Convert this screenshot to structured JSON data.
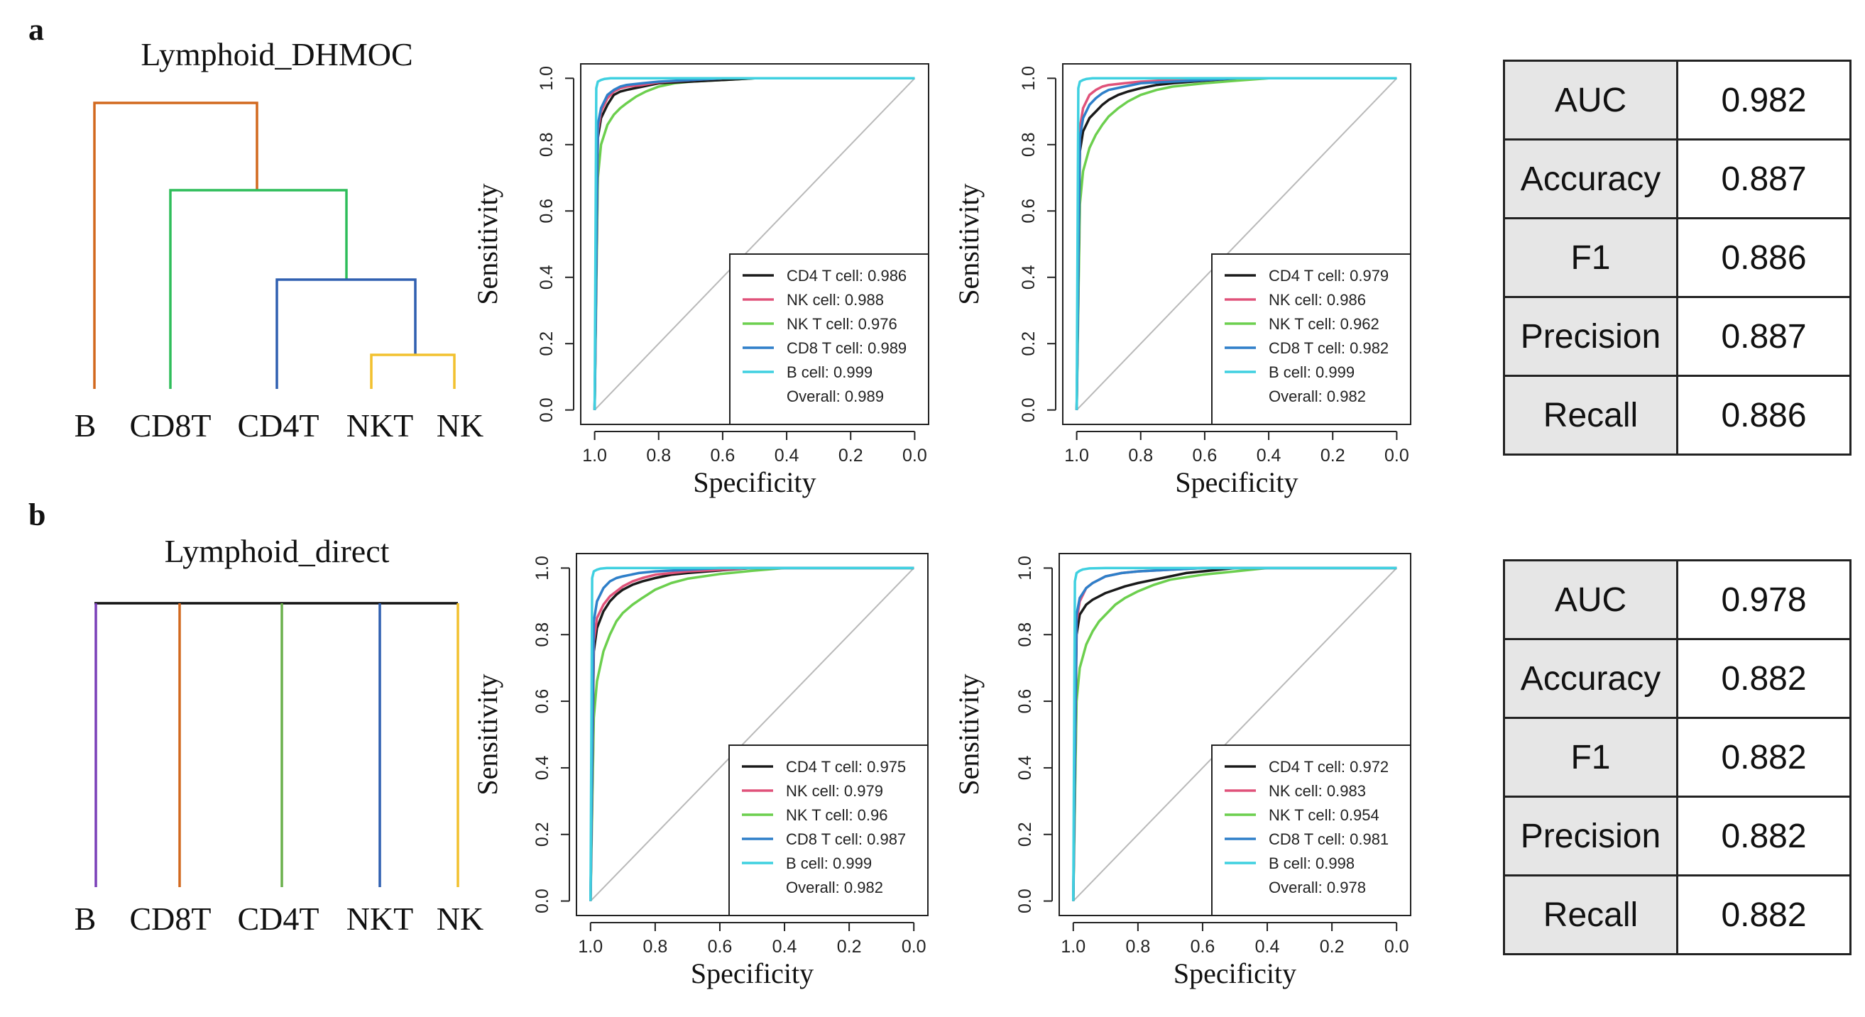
{
  "panels": [
    {
      "letter": "a",
      "dendrogram": {
        "title": "Lymphoid_DHMOC",
        "leaves": [
          "B",
          "CD8T",
          "CD4T",
          "NKT",
          "NK"
        ]
      },
      "metrics": [
        {
          "label": "AUC",
          "value": "0.982"
        },
        {
          "label": "Accuracy",
          "value": "0.887"
        },
        {
          "label": "F1",
          "value": "0.886"
        },
        {
          "label": "Precision",
          "value": "0.887"
        },
        {
          "label": "Recall",
          "value": "0.886"
        }
      ]
    },
    {
      "letter": "b",
      "dendrogram": {
        "title": "Lymphoid_direct",
        "leaves": [
          "B",
          "CD8T",
          "CD4T",
          "NKT",
          "NK"
        ]
      },
      "metrics": [
        {
          "label": "AUC",
          "value": "0.978"
        },
        {
          "label": "Accuracy",
          "value": "0.882"
        },
        {
          "label": "F1",
          "value": "0.882"
        },
        {
          "label": "Precision",
          "value": "0.882"
        },
        {
          "label": "Recall",
          "value": "0.882"
        }
      ]
    }
  ],
  "colors": {
    "cd4": "#1a1a1a",
    "nk": "#e0527a",
    "nkt": "#6ccf4e",
    "cd8": "#2e7fc9",
    "b": "#3fd0e0",
    "diagonal": "#b9b9b9",
    "dendro_orange": "#d2691e",
    "dendro_green": "#2ebd5a",
    "dendro_blue": "#2f5fb0",
    "dendro_yellow": "#f2c12e",
    "direct_purple": "#7a3fb8",
    "direct_orange": "#d2691e",
    "direct_green": "#6ab04c",
    "direct_blue": "#2f5fb0",
    "direct_yellow": "#f2c12e"
  },
  "chart_data": [
    {
      "type": "line",
      "panel": "a",
      "xlabel": "Specificity",
      "ylabel": "Sensitivity",
      "xlim": [
        1.0,
        0.0
      ],
      "ylim": [
        0.0,
        1.0
      ],
      "xticks": [
        "1.0",
        "0.8",
        "0.6",
        "0.4",
        "0.2",
        "0.0"
      ],
      "yticks": [
        "0.0",
        "0.2",
        "0.4",
        "0.6",
        "0.8",
        "1.0"
      ],
      "legend_position": "bottom-right",
      "series": [
        {
          "name": "CD4 T cell: 0.986",
          "color": "cd4",
          "x": [
            1.0,
            0.99,
            0.98,
            0.96,
            0.94,
            0.92,
            0.9,
            0.85,
            0.8,
            0.7,
            0.6,
            0.5,
            0.0
          ],
          "y": [
            0.0,
            0.82,
            0.88,
            0.92,
            0.95,
            0.96,
            0.965,
            0.975,
            0.985,
            0.99,
            0.995,
            1.0,
            1.0
          ]
        },
        {
          "name": "NK cell: 0.988",
          "color": "nk",
          "x": [
            1.0,
            0.99,
            0.98,
            0.96,
            0.94,
            0.92,
            0.9,
            0.85,
            0.8,
            0.7,
            0.6,
            0.0
          ],
          "y": [
            0.0,
            0.84,
            0.9,
            0.94,
            0.96,
            0.97,
            0.975,
            0.98,
            0.988,
            0.995,
            1.0,
            1.0
          ]
        },
        {
          "name": "NK T cell: 0.976",
          "color": "nkt",
          "x": [
            1.0,
            0.99,
            0.98,
            0.96,
            0.94,
            0.92,
            0.9,
            0.87,
            0.84,
            0.8,
            0.75,
            0.7,
            0.6,
            0.5,
            0.0
          ],
          "y": [
            0.0,
            0.7,
            0.8,
            0.86,
            0.89,
            0.91,
            0.925,
            0.945,
            0.96,
            0.975,
            0.985,
            0.99,
            0.995,
            1.0,
            1.0
          ]
        },
        {
          "name": "CD8 T cell: 0.989",
          "color": "cd8",
          "x": [
            1.0,
            0.99,
            0.98,
            0.96,
            0.94,
            0.92,
            0.9,
            0.85,
            0.8,
            0.7,
            0.6,
            0.0
          ],
          "y": [
            0.0,
            0.86,
            0.91,
            0.95,
            0.965,
            0.975,
            0.98,
            0.985,
            0.99,
            0.995,
            1.0,
            1.0
          ]
        },
        {
          "name": "B cell: 0.999",
          "color": "b",
          "x": [
            1.0,
            0.995,
            0.99,
            0.98,
            0.97,
            0.95,
            0.9,
            0.0
          ],
          "y": [
            0.0,
            0.97,
            0.99,
            0.995,
            0.998,
            1.0,
            1.0,
            1.0
          ]
        }
      ],
      "overall": "Overall: 0.989"
    },
    {
      "type": "line",
      "panel": "a",
      "xlabel": "Specificity",
      "ylabel": "Sensitivity",
      "xlim": [
        1.0,
        0.0
      ],
      "ylim": [
        0.0,
        1.0
      ],
      "xticks": [
        "1.0",
        "0.8",
        "0.6",
        "0.4",
        "0.2",
        "0.0"
      ],
      "yticks": [
        "0.0",
        "0.2",
        "0.4",
        "0.6",
        "0.8",
        "1.0"
      ],
      "legend_position": "bottom-right",
      "series": [
        {
          "name": "CD4 T cell: 0.979",
          "color": "cd4",
          "x": [
            1.0,
            0.99,
            0.98,
            0.96,
            0.94,
            0.92,
            0.9,
            0.87,
            0.84,
            0.8,
            0.75,
            0.7,
            0.6,
            0.5,
            0.0
          ],
          "y": [
            0.0,
            0.78,
            0.84,
            0.88,
            0.9,
            0.92,
            0.935,
            0.95,
            0.96,
            0.97,
            0.98,
            0.985,
            0.993,
            1.0,
            1.0
          ]
        },
        {
          "name": "NK cell: 0.986",
          "color": "nk",
          "x": [
            1.0,
            0.99,
            0.98,
            0.96,
            0.94,
            0.92,
            0.9,
            0.85,
            0.8,
            0.7,
            0.6,
            0.0
          ],
          "y": [
            0.0,
            0.85,
            0.91,
            0.95,
            0.965,
            0.975,
            0.98,
            0.985,
            0.99,
            0.995,
            1.0,
            1.0
          ]
        },
        {
          "name": "NK T cell: 0.962",
          "color": "nkt",
          "x": [
            1.0,
            0.99,
            0.98,
            0.96,
            0.94,
            0.92,
            0.9,
            0.87,
            0.84,
            0.8,
            0.75,
            0.7,
            0.6,
            0.5,
            0.4,
            0.0
          ],
          "y": [
            0.0,
            0.62,
            0.72,
            0.79,
            0.83,
            0.86,
            0.885,
            0.91,
            0.93,
            0.95,
            0.965,
            0.975,
            0.985,
            0.993,
            1.0,
            1.0
          ]
        },
        {
          "name": "CD8 T cell: 0.982",
          "color": "cd8",
          "x": [
            1.0,
            0.99,
            0.98,
            0.96,
            0.94,
            0.92,
            0.9,
            0.85,
            0.8,
            0.7,
            0.6,
            0.5,
            0.0
          ],
          "y": [
            0.0,
            0.82,
            0.88,
            0.92,
            0.94,
            0.955,
            0.965,
            0.975,
            0.985,
            0.99,
            0.995,
            1.0,
            1.0
          ]
        },
        {
          "name": "B cell: 0.999",
          "color": "b",
          "x": [
            1.0,
            0.995,
            0.99,
            0.98,
            0.97,
            0.95,
            0.9,
            0.0
          ],
          "y": [
            0.0,
            0.97,
            0.99,
            0.995,
            0.998,
            1.0,
            1.0,
            1.0
          ]
        }
      ],
      "overall": "Overall: 0.982"
    },
    {
      "type": "line",
      "panel": "b",
      "xlabel": "Specificity",
      "ylabel": "Sensitivity",
      "xlim": [
        1.0,
        0.0
      ],
      "ylim": [
        0.0,
        1.0
      ],
      "xticks": [
        "1.0",
        "0.8",
        "0.6",
        "0.4",
        "0.2",
        "0.0"
      ],
      "yticks": [
        "0.0",
        "0.2",
        "0.4",
        "0.6",
        "0.8",
        "1.0"
      ],
      "legend_position": "bottom-right",
      "series": [
        {
          "name": "CD4 T cell: 0.975",
          "color": "cd4",
          "x": [
            1.0,
            0.99,
            0.98,
            0.96,
            0.94,
            0.92,
            0.9,
            0.87,
            0.84,
            0.8,
            0.75,
            0.7,
            0.6,
            0.5,
            0.0
          ],
          "y": [
            0.0,
            0.75,
            0.82,
            0.87,
            0.9,
            0.92,
            0.935,
            0.95,
            0.96,
            0.97,
            0.98,
            0.985,
            0.993,
            1.0,
            1.0
          ]
        },
        {
          "name": "NK cell: 0.979",
          "color": "nk",
          "x": [
            1.0,
            0.99,
            0.98,
            0.96,
            0.94,
            0.92,
            0.9,
            0.87,
            0.84,
            0.8,
            0.7,
            0.6,
            0.5,
            0.0
          ],
          "y": [
            0.0,
            0.78,
            0.85,
            0.89,
            0.915,
            0.93,
            0.945,
            0.96,
            0.97,
            0.98,
            0.99,
            0.995,
            1.0,
            1.0
          ]
        },
        {
          "name": "NK T cell: 0.96",
          "color": "nkt",
          "x": [
            1.0,
            0.99,
            0.98,
            0.96,
            0.94,
            0.92,
            0.9,
            0.87,
            0.84,
            0.8,
            0.75,
            0.7,
            0.6,
            0.5,
            0.4,
            0.0
          ],
          "y": [
            0.0,
            0.55,
            0.66,
            0.75,
            0.8,
            0.84,
            0.865,
            0.89,
            0.91,
            0.935,
            0.955,
            0.968,
            0.982,
            0.992,
            1.0,
            1.0
          ]
        },
        {
          "name": "CD8 T cell: 0.987",
          "color": "cd8",
          "x": [
            1.0,
            0.99,
            0.98,
            0.96,
            0.94,
            0.92,
            0.9,
            0.85,
            0.8,
            0.7,
            0.6,
            0.0
          ],
          "y": [
            0.0,
            0.84,
            0.9,
            0.94,
            0.96,
            0.97,
            0.975,
            0.985,
            0.99,
            0.995,
            1.0,
            1.0
          ]
        },
        {
          "name": "B cell: 0.999",
          "color": "b",
          "x": [
            1.0,
            0.995,
            0.99,
            0.98,
            0.97,
            0.95,
            0.9,
            0.0
          ],
          "y": [
            0.0,
            0.97,
            0.99,
            0.995,
            0.998,
            1.0,
            1.0,
            1.0
          ]
        }
      ],
      "overall": "Overall: 0.982"
    },
    {
      "type": "line",
      "panel": "b",
      "xlabel": "Specificity",
      "ylabel": "Sensitivity",
      "xlim": [
        1.0,
        0.0
      ],
      "ylim": [
        0.0,
        1.0
      ],
      "xticks": [
        "1.0",
        "0.8",
        "0.6",
        "0.4",
        "0.2",
        "0.0"
      ],
      "yticks": [
        "0.0",
        "0.2",
        "0.4",
        "0.6",
        "0.8",
        "1.0"
      ],
      "legend_position": "bottom-right",
      "series": [
        {
          "name": "CD4 T cell: 0.972",
          "color": "cd4",
          "x": [
            1.0,
            0.99,
            0.98,
            0.96,
            0.94,
            0.92,
            0.9,
            0.87,
            0.84,
            0.8,
            0.75,
            0.7,
            0.65,
            0.6,
            0.5,
            0.0
          ],
          "y": [
            0.0,
            0.8,
            0.86,
            0.89,
            0.905,
            0.915,
            0.925,
            0.935,
            0.945,
            0.955,
            0.965,
            0.975,
            0.985,
            0.99,
            1.0,
            1.0
          ]
        },
        {
          "name": "NK cell: 0.983",
          "color": "nk",
          "x": [
            1.0,
            0.99,
            0.98,
            0.96,
            0.94,
            0.92,
            0.9,
            0.85,
            0.8,
            0.7,
            0.6,
            0.0
          ],
          "y": [
            0.0,
            0.84,
            0.9,
            0.94,
            0.955,
            0.965,
            0.975,
            0.985,
            0.99,
            0.995,
            1.0,
            1.0
          ]
        },
        {
          "name": "NK T cell: 0.954",
          "color": "nkt",
          "x": [
            1.0,
            0.99,
            0.98,
            0.96,
            0.94,
            0.92,
            0.9,
            0.87,
            0.84,
            0.8,
            0.75,
            0.7,
            0.6,
            0.5,
            0.4,
            0.0
          ],
          "y": [
            0.0,
            0.6,
            0.7,
            0.77,
            0.81,
            0.84,
            0.86,
            0.89,
            0.91,
            0.93,
            0.95,
            0.965,
            0.98,
            0.99,
            1.0,
            1.0
          ]
        },
        {
          "name": "CD8 T cell: 0.981",
          "color": "cd8",
          "x": [
            1.0,
            0.99,
            0.98,
            0.96,
            0.94,
            0.92,
            0.9,
            0.85,
            0.8,
            0.7,
            0.6,
            0.0
          ],
          "y": [
            0.0,
            0.86,
            0.91,
            0.94,
            0.955,
            0.965,
            0.975,
            0.985,
            0.99,
            0.995,
            1.0,
            1.0
          ]
        },
        {
          "name": "B cell: 0.998",
          "color": "b",
          "x": [
            1.0,
            0.995,
            0.99,
            0.98,
            0.97,
            0.95,
            0.9,
            0.0
          ],
          "y": [
            0.0,
            0.96,
            0.985,
            0.992,
            0.996,
            0.999,
            1.0,
            1.0
          ]
        }
      ],
      "overall": "Overall: 0.978"
    }
  ]
}
